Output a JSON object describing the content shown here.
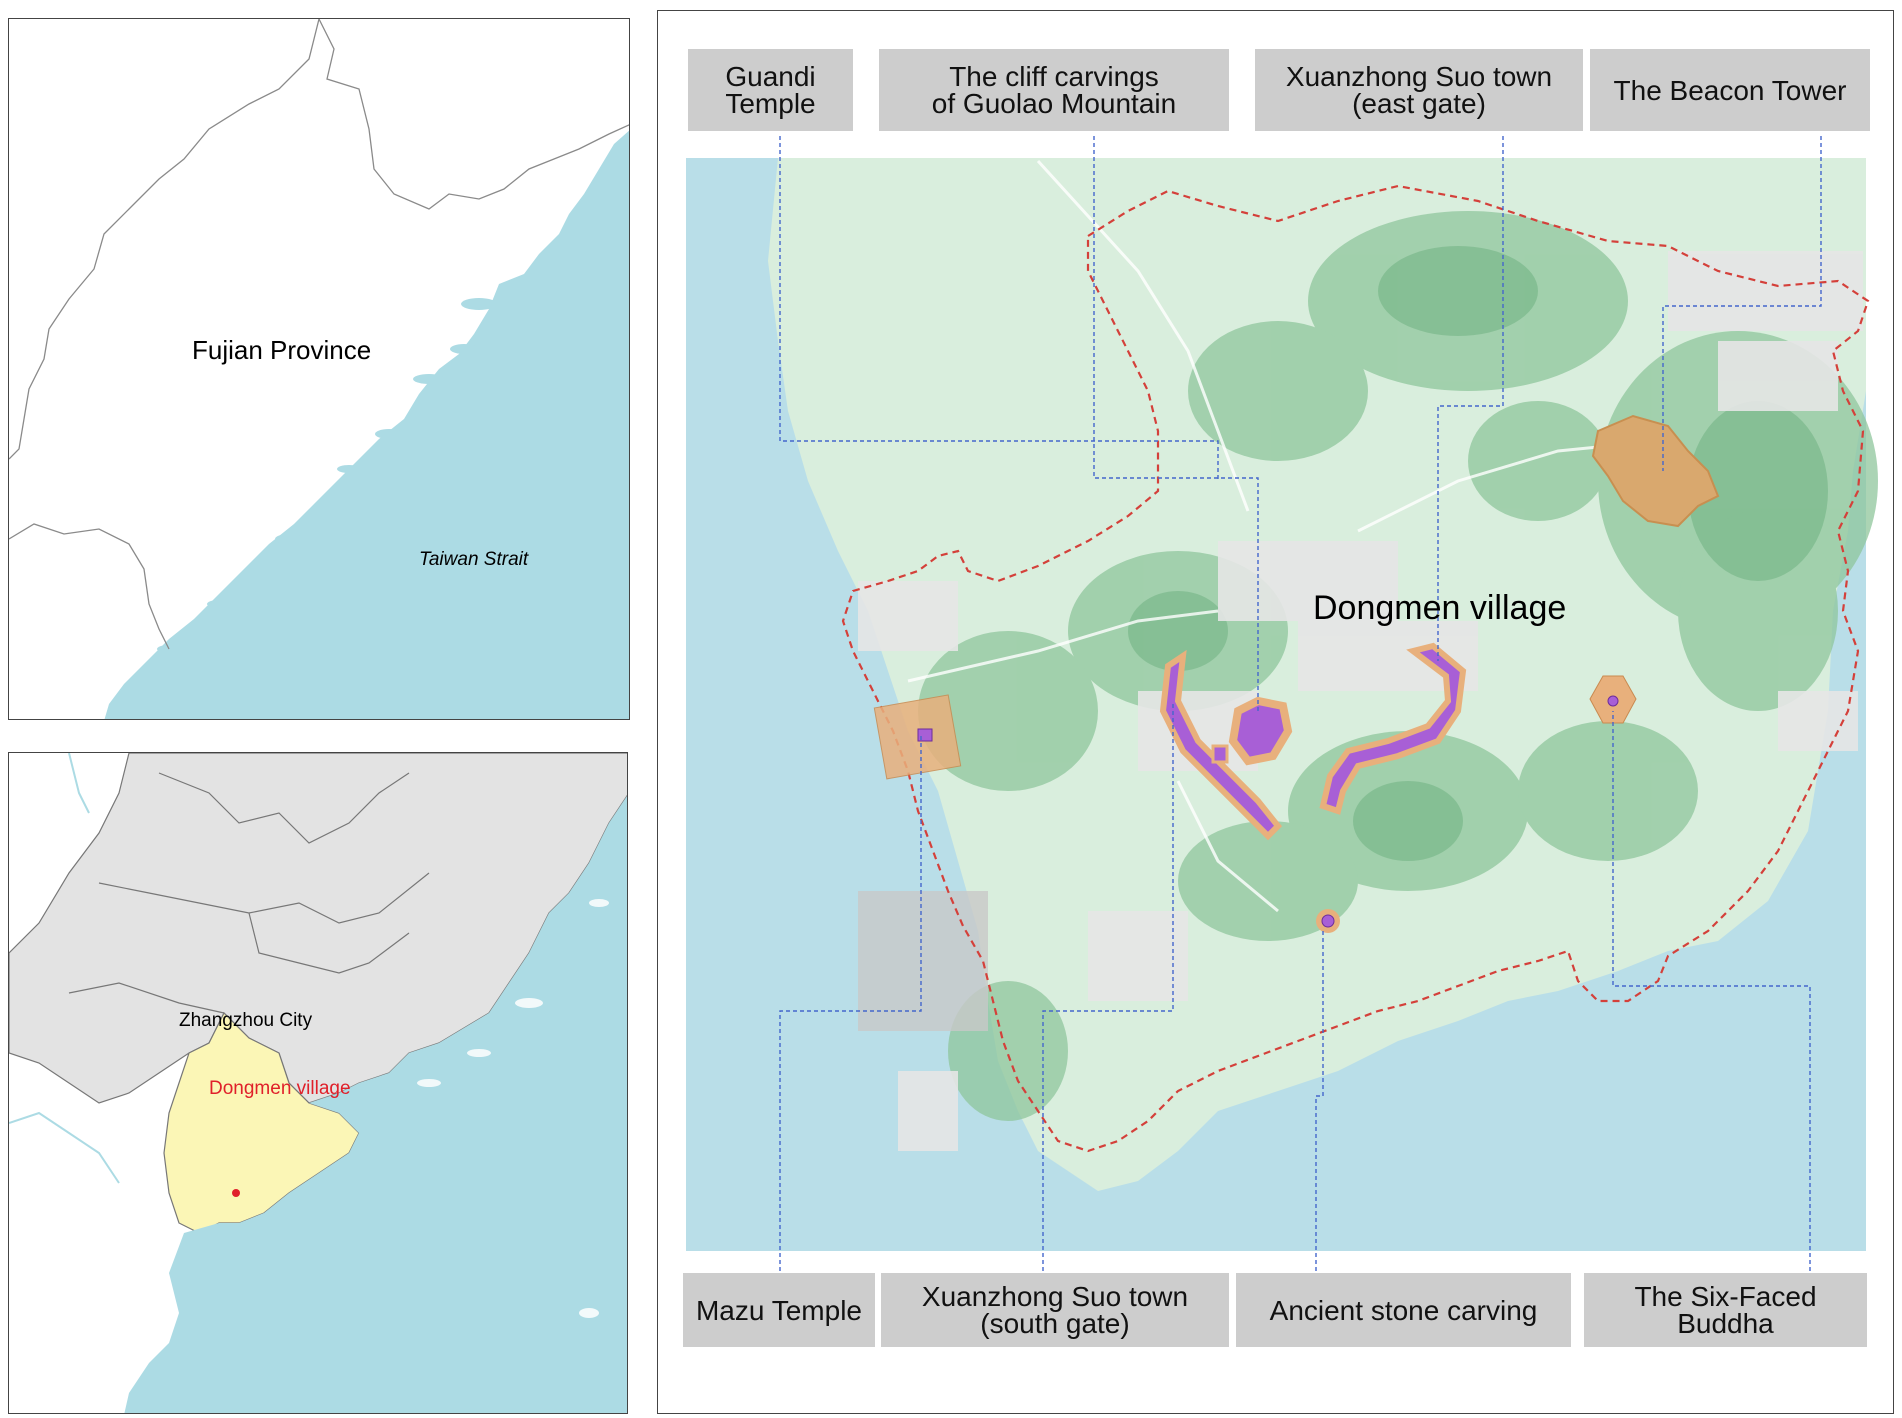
{
  "province_map": {
    "province_label": "Fujian Province",
    "sea_label": "Taiwan Strait",
    "colors": {
      "land": "#ffffff",
      "sea": "#acdbe4",
      "border": "#8a8a8a"
    }
  },
  "city_map": {
    "city_label": "Zhangzhou City",
    "village_label": "Dongmen village",
    "colors": {
      "other_land": "#e3e3e3",
      "city": "#fbf6b6",
      "sea": "#acdbe4",
      "marker": "#e0202a"
    }
  },
  "village_map": {
    "village_label": "Dongmen village",
    "colors": {
      "sea": "#b9dee8",
      "green": "#a9d6b0",
      "boundary": "#d4403a",
      "site_fill": "#a85fd6",
      "buffer": "#e8b07c",
      "leader": "#4466cc",
      "label_box": "#cdcdcd"
    },
    "labels_top": [
      {
        "line1": "Guandi",
        "line2": "Temple"
      },
      {
        "line1": "The cliff carvings",
        "line2": "of Guolao Mountain"
      },
      {
        "line1": "Xuanzhong Suo town",
        "line2": "(east gate)"
      },
      {
        "line1": "The Beacon Tower",
        "line2": ""
      }
    ],
    "labels_bottom": [
      {
        "line1": "Mazu Temple",
        "line2": ""
      },
      {
        "line1": "Xuanzhong Suo town",
        "line2": "(south gate)"
      },
      {
        "line1": "Ancient stone carving",
        "line2": ""
      },
      {
        "line1": "The Six-Faced",
        "line2": "Buddha"
      }
    ]
  }
}
